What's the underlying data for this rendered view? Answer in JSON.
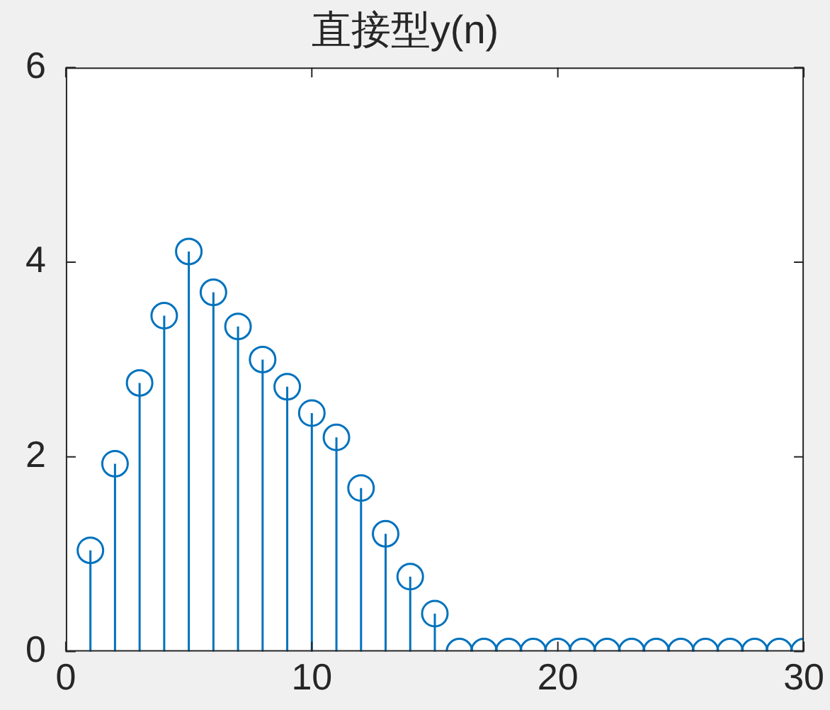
{
  "chart_data": {
    "type": "lollipop",
    "title": "直接型y(n)",
    "x": [
      1,
      2,
      3,
      4,
      5,
      6,
      7,
      8,
      9,
      10,
      11,
      12,
      13,
      14,
      15,
      16,
      17,
      18,
      19,
      20,
      21,
      22,
      23,
      24,
      25,
      26,
      27,
      28,
      29,
      30
    ],
    "series": [
      {
        "color": "#0072bd",
        "values": [
          1.04,
          1.93,
          2.76,
          3.45,
          4.11,
          3.69,
          3.34,
          3.0,
          2.72,
          2.45,
          2.2,
          1.68,
          1.21,
          0.77,
          0.39,
          0,
          0,
          0,
          0,
          0,
          0,
          0,
          0,
          0,
          0,
          0,
          0,
          0,
          0,
          0
        ]
      }
    ],
    "xlim": [
      0,
      30
    ],
    "xticks": [
      0,
      10,
      20,
      30
    ],
    "ylim": [
      0,
      6
    ],
    "yticks": [
      0,
      2,
      4,
      6
    ],
    "grid": false,
    "legend": false,
    "marker": "circle"
  }
}
